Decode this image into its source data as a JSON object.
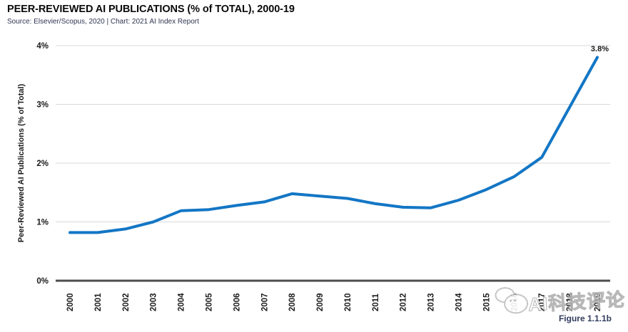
{
  "header": {
    "title": "PEER-REVIEWED AI PUBLICATIONS (% of TOTAL), 2000-19",
    "source": "Source: Elsevier/Scopus, 2020 | Chart: 2021 AI Index Report"
  },
  "figure_caption": "Figure 1.1.1b",
  "watermark": {
    "text": "AI科技评论",
    "logo": "speech-bubbles-icon"
  },
  "chart_data": {
    "type": "line",
    "title": "PEER-REVIEWED AI PUBLICATIONS (% of TOTAL), 2000-19",
    "xlabel": "",
    "ylabel": "Peer-Reviewed AI Publications (% of Total)",
    "categories": [
      "2000",
      "2001",
      "2002",
      "2003",
      "2004",
      "2005",
      "2006",
      "2007",
      "2008",
      "2009",
      "2010",
      "2011",
      "2012",
      "2013",
      "2014",
      "2015",
      "2016",
      "2017",
      "2018",
      "2019"
    ],
    "series": [
      {
        "name": "Peer-Reviewed AI Publications (% of Total)",
        "values": [
          0.82,
          0.82,
          0.88,
          1.0,
          1.19,
          1.21,
          1.28,
          1.34,
          1.48,
          1.44,
          1.4,
          1.31,
          1.25,
          1.24,
          1.37,
          1.55,
          1.77,
          2.1,
          2.95,
          3.8
        ]
      }
    ],
    "ylim": [
      0,
      4
    ],
    "y_ticks": [
      "0%",
      "1%",
      "2%",
      "3%",
      "4%"
    ],
    "grid": "horizontal",
    "legend_position": "none",
    "endpoint_label": "3.8%",
    "colors": {
      "line": "#1376c5",
      "gridline": "#d8d8d8",
      "axis": "#4d4d4d",
      "tick_text": "#1a1a1a"
    }
  }
}
